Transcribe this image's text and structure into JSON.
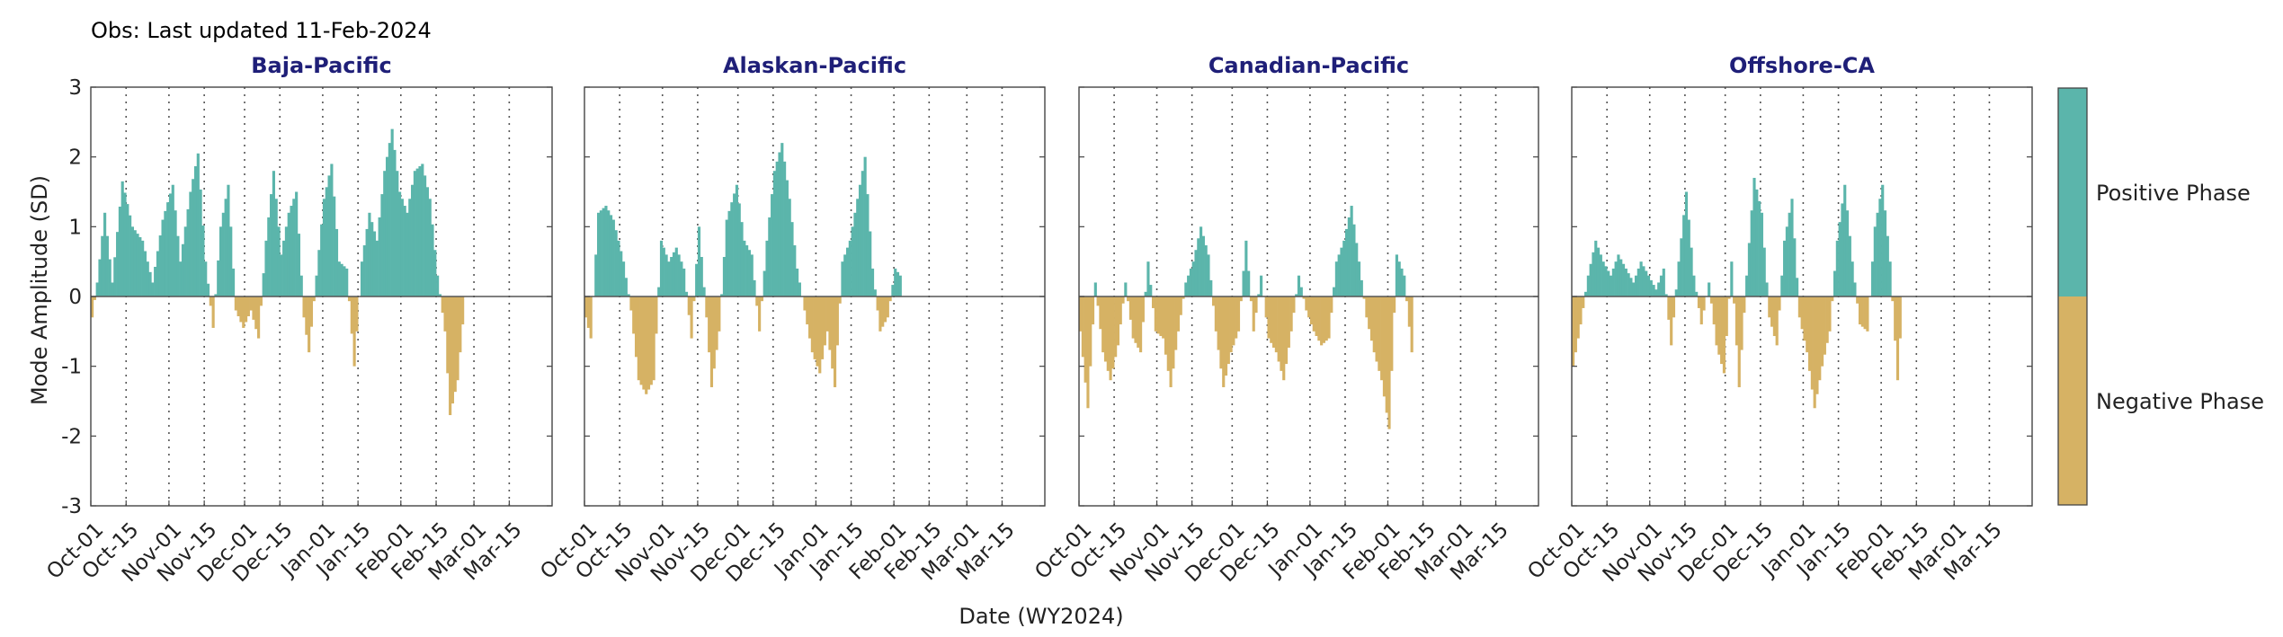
{
  "header": {
    "obs_label": "Obs: Last updated 11-Feb-2024"
  },
  "colors": {
    "positive": "#5bb5ab",
    "negative": "#d6b264",
    "title": "#1f1f78",
    "axis": "#444444"
  },
  "chart_data": {
    "type": "bar",
    "xlabel": "Date (WY2024)",
    "ylabel": "Mode Amplitude (SD)",
    "ylim": [
      -3,
      3
    ],
    "yticks": [
      3,
      2,
      1,
      0,
      -1,
      -2,
      -3
    ],
    "xlim": [
      "2023-10-01",
      "2024-03-31"
    ],
    "xtick_labels": [
      "Oct-01",
      "Oct-15",
      "Nov-01",
      "Nov-15",
      "Dec-01",
      "Dec-15",
      "Jan-01",
      "Jan-15",
      "Feb-01",
      "Feb-15",
      "Mar-01",
      "Mar-15"
    ],
    "xtick_dates": [
      "2023-10-01",
      "2023-10-15",
      "2023-11-01",
      "2023-11-15",
      "2023-12-01",
      "2023-12-15",
      "2024-01-01",
      "2024-01-15",
      "2024-02-01",
      "2024-02-15",
      "2024-03-01",
      "2024-03-15"
    ],
    "grid": "vertical dotted at date ticks",
    "legend": {
      "placement": "right",
      "labels": [
        "Positive Phase",
        "Negative Phase"
      ]
    },
    "panels": [
      {
        "title": "Baja-Pacific",
        "start_date": "2023-10-01",
        "anchors": [
          [
            0,
            -0.3
          ],
          [
            2,
            0.2
          ],
          [
            5,
            1.2
          ],
          [
            8,
            0.2
          ],
          [
            12,
            1.65
          ],
          [
            16,
            1.0
          ],
          [
            20,
            0.8
          ],
          [
            24,
            0.2
          ],
          [
            28,
            1.1
          ],
          [
            32,
            1.6
          ],
          [
            35,
            0.5
          ],
          [
            39,
            1.5
          ],
          [
            42,
            2.05
          ],
          [
            45,
            0.5
          ],
          [
            48,
            -0.45
          ],
          [
            51,
            1.0
          ],
          [
            54,
            1.6
          ],
          [
            57,
            -0.2
          ],
          [
            60,
            -0.45
          ],
          [
            63,
            -0.2
          ],
          [
            66,
            -0.6
          ],
          [
            69,
            0.8
          ],
          [
            72,
            1.8
          ],
          [
            75,
            0.6
          ],
          [
            78,
            1.2
          ],
          [
            81,
            1.5
          ],
          [
            84,
            -0.3
          ],
          [
            86,
            -0.8
          ],
          [
            89,
            0.3
          ],
          [
            92,
            1.4
          ],
          [
            95,
            1.9
          ],
          [
            98,
            0.5
          ],
          [
            101,
            0.4
          ],
          [
            104,
            -1.0
          ],
          [
            107,
            0.5
          ],
          [
            110,
            1.2
          ],
          [
            113,
            0.8
          ],
          [
            116,
            1.8
          ],
          [
            119,
            2.4
          ],
          [
            122,
            1.5
          ],
          [
            125,
            1.2
          ],
          [
            128,
            1.8
          ],
          [
            131,
            1.9
          ],
          [
            134,
            1.4
          ],
          [
            137,
            0.3
          ],
          [
            140,
            -0.5
          ],
          [
            142,
            -1.7
          ],
          [
            145,
            -1.2
          ],
          [
            147,
            -0.4
          ],
          [
            148,
            0
          ]
        ]
      },
      {
        "title": "Alaskan-Pacific",
        "start_date": "2023-10-01",
        "anchors": [
          [
            0,
            -0.3
          ],
          [
            2,
            -0.6
          ],
          [
            5,
            1.2
          ],
          [
            8,
            1.3
          ],
          [
            11,
            1.1
          ],
          [
            15,
            0.5
          ],
          [
            18,
            -0.2
          ],
          [
            21,
            -1.2
          ],
          [
            24,
            -1.4
          ],
          [
            27,
            -1.2
          ],
          [
            30,
            0.8
          ],
          [
            33,
            0.5
          ],
          [
            36,
            0.7
          ],
          [
            39,
            0.4
          ],
          [
            42,
            -0.6
          ],
          [
            45,
            1.0
          ],
          [
            48,
            -0.3
          ],
          [
            50,
            -1.3
          ],
          [
            53,
            -0.5
          ],
          [
            56,
            1.1
          ],
          [
            60,
            1.6
          ],
          [
            63,
            0.8
          ],
          [
            66,
            0.6
          ],
          [
            69,
            -0.5
          ],
          [
            72,
            0.8
          ],
          [
            75,
            1.8
          ],
          [
            78,
            2.2
          ],
          [
            81,
            1.4
          ],
          [
            84,
            0.4
          ],
          [
            87,
            -0.2
          ],
          [
            90,
            -0.8
          ],
          [
            93,
            -1.1
          ],
          [
            96,
            -0.5
          ],
          [
            99,
            -1.3
          ],
          [
            102,
            0.5
          ],
          [
            105,
            0.8
          ],
          [
            108,
            1.4
          ],
          [
            111,
            2.0
          ],
          [
            114,
            0.4
          ],
          [
            117,
            -0.5
          ],
          [
            120,
            -0.3
          ],
          [
            123,
            0.4
          ],
          [
            125,
            0.3
          ],
          [
            126,
            0
          ]
        ]
      },
      {
        "title": "Canadian-Pacific",
        "start_date": "2023-10-01",
        "anchors": [
          [
            0,
            -0.5
          ],
          [
            3,
            -1.6
          ],
          [
            6,
            0.2
          ],
          [
            9,
            -0.8
          ],
          [
            12,
            -1.2
          ],
          [
            15,
            -0.7
          ],
          [
            18,
            0.2
          ],
          [
            21,
            -0.6
          ],
          [
            24,
            -0.8
          ],
          [
            27,
            0.5
          ],
          [
            30,
            -0.5
          ],
          [
            33,
            -0.6
          ],
          [
            36,
            -1.3
          ],
          [
            39,
            -0.5
          ],
          [
            42,
            0.2
          ],
          [
            45,
            0.5
          ],
          [
            48,
            1.0
          ],
          [
            51,
            0.6
          ],
          [
            54,
            -0.5
          ],
          [
            57,
            -1.3
          ],
          [
            60,
            -0.8
          ],
          [
            63,
            -0.5
          ],
          [
            66,
            0.8
          ],
          [
            69,
            -0.5
          ],
          [
            72,
            0.3
          ],
          [
            75,
            -0.6
          ],
          [
            78,
            -0.8
          ],
          [
            81,
            -1.2
          ],
          [
            84,
            -0.5
          ],
          [
            87,
            0.3
          ],
          [
            90,
            -0.2
          ],
          [
            93,
            -0.5
          ],
          [
            96,
            -0.7
          ],
          [
            99,
            -0.6
          ],
          [
            102,
            0.5
          ],
          [
            105,
            0.8
          ],
          [
            108,
            1.3
          ],
          [
            111,
            0.5
          ],
          [
            114,
            -0.3
          ],
          [
            117,
            -0.8
          ],
          [
            120,
            -1.2
          ],
          [
            123,
            -1.9
          ],
          [
            126,
            0.6
          ],
          [
            129,
            0.3
          ],
          [
            132,
            -0.8
          ],
          [
            133,
            0
          ]
        ]
      },
      {
        "title": "Offshore-CA",
        "start_date": "2023-10-01",
        "anchors": [
          [
            0,
            -1.0
          ],
          [
            3,
            -0.4
          ],
          [
            6,
            0.3
          ],
          [
            9,
            0.8
          ],
          [
            12,
            0.5
          ],
          [
            15,
            0.3
          ],
          [
            18,
            0.6
          ],
          [
            21,
            0.4
          ],
          [
            24,
            0.2
          ],
          [
            27,
            0.5
          ],
          [
            30,
            0.3
          ],
          [
            33,
            0.1
          ],
          [
            36,
            0.4
          ],
          [
            39,
            -0.7
          ],
          [
            42,
            0.5
          ],
          [
            45,
            1.5
          ],
          [
            48,
            0.3
          ],
          [
            51,
            -0.4
          ],
          [
            54,
            0.2
          ],
          [
            57,
            -0.7
          ],
          [
            60,
            -1.1
          ],
          [
            63,
            0.5
          ],
          [
            66,
            -1.3
          ],
          [
            69,
            0.3
          ],
          [
            72,
            1.7
          ],
          [
            75,
            1.2
          ],
          [
            78,
            -0.3
          ],
          [
            81,
            -0.7
          ],
          [
            84,
            0.8
          ],
          [
            87,
            1.4
          ],
          [
            90,
            -0.3
          ],
          [
            93,
            -0.8
          ],
          [
            96,
            -1.6
          ],
          [
            99,
            -1.0
          ],
          [
            102,
            -0.5
          ],
          [
            105,
            0.8
          ],
          [
            108,
            1.6
          ],
          [
            111,
            0.5
          ],
          [
            114,
            -0.4
          ],
          [
            117,
            -0.5
          ],
          [
            120,
            1.0
          ],
          [
            123,
            1.6
          ],
          [
            126,
            0.5
          ],
          [
            129,
            -1.2
          ],
          [
            130,
            -0.6
          ],
          [
            131,
            0
          ]
        ]
      }
    ]
  }
}
